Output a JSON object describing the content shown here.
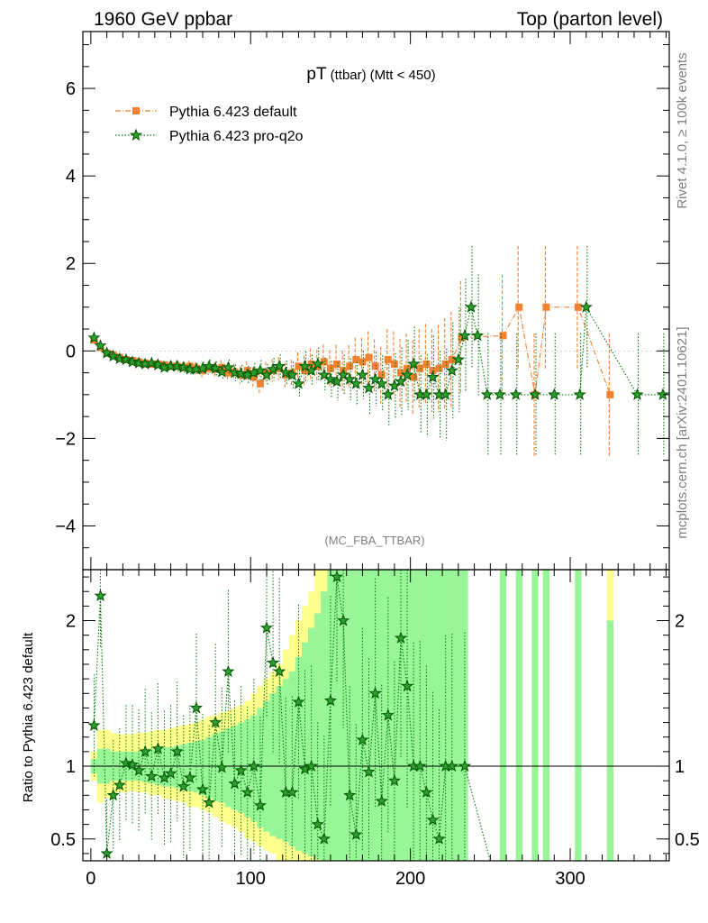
{
  "header": {
    "left": "1960 GeV ppbar",
    "right": "Top (parton level)"
  },
  "side": {
    "rivet": "Rivet 4.1.0, ≥ 100k events",
    "mcplots": "mcplots.cern.ch [arXiv:2401.10621]"
  },
  "chart_data": [
    {
      "type": "scatter",
      "title_main": "pT",
      "title_sub": "(ttbar)",
      "title_cut": "(Mtt < 450)",
      "analysis": "(MC_FBA_TTBAR)",
      "xlim": [
        -5,
        362
      ],
      "ylim": [
        -5,
        7.3
      ],
      "yticks": [
        -4,
        -2,
        0,
        2,
        4,
        6
      ],
      "ytick_labels": [
        "−4",
        "−2",
        "0",
        "2",
        "4",
        "6"
      ],
      "legend": [
        "Pythia 6.423 default",
        "Pythia 6.423 pro-q2o"
      ],
      "series": [
        {
          "name": "Pythia 6.423 default",
          "color": "#f4812f",
          "marker": "square",
          "x": [
            2,
            6,
            10,
            14,
            18,
            22,
            26,
            30,
            34,
            38,
            42,
            46,
            50,
            54,
            58,
            62,
            66,
            70,
            74,
            78,
            82,
            86,
            90,
            94,
            98,
            102,
            106,
            110,
            114,
            118,
            122,
            126,
            130,
            134,
            138,
            142,
            146,
            150,
            154,
            158,
            162,
            166,
            170,
            174,
            178,
            182,
            186,
            190,
            194,
            198,
            202,
            206,
            210,
            214,
            218,
            222,
            226,
            232,
            258,
            268,
            278,
            285,
            305,
            325
          ],
          "y": [
            0.25,
            0.08,
            -0.05,
            -0.1,
            -0.15,
            -0.2,
            -0.22,
            -0.25,
            -0.28,
            -0.3,
            -0.3,
            -0.32,
            -0.35,
            -0.35,
            -0.38,
            -0.35,
            -0.4,
            -0.45,
            -0.4,
            -0.42,
            -0.38,
            -0.5,
            -0.48,
            -0.55,
            -0.45,
            -0.6,
            -0.75,
            -0.5,
            -0.45,
            -0.4,
            -0.55,
            -0.5,
            -0.35,
            -0.45,
            -0.3,
            -0.35,
            -0.25,
            -0.4,
            -0.3,
            -0.45,
            -0.35,
            -0.2,
            -0.25,
            -0.15,
            -0.35,
            -0.55,
            -0.2,
            -0.3,
            -0.5,
            -0.4,
            -0.6,
            -0.4,
            -0.3,
            -0.45,
            -0.4,
            -0.3,
            -0.2,
            0.3,
            0.35,
            1.0,
            -1.0,
            1.0,
            1.0,
            -1.0
          ],
          "yerr": [
            0.05,
            0.05,
            0.05,
            0.06,
            0.06,
            0.07,
            0.07,
            0.08,
            0.08,
            0.09,
            0.1,
            0.1,
            0.11,
            0.12,
            0.12,
            0.13,
            0.14,
            0.15,
            0.15,
            0.16,
            0.17,
            0.18,
            0.19,
            0.2,
            0.21,
            0.22,
            0.24,
            0.25,
            0.26,
            0.27,
            0.28,
            0.3,
            0.32,
            0.34,
            0.36,
            0.38,
            0.4,
            0.42,
            0.44,
            0.46,
            0.48,
            0.5,
            0.55,
            0.6,
            0.62,
            0.65,
            0.7,
            0.75,
            0.78,
            0.8,
            0.85,
            0.9,
            0.92,
            0.95,
            1.0,
            1.05,
            1.1,
            1.3,
            1.4,
            1.4,
            1.4,
            1.4,
            1.4,
            1.4
          ]
        },
        {
          "name": "Pythia 6.423 pro-q2o",
          "color": "#007a00",
          "marker": "star",
          "x": [
            2,
            6,
            10,
            14,
            18,
            22,
            26,
            30,
            34,
            38,
            42,
            46,
            50,
            54,
            58,
            62,
            66,
            70,
            74,
            78,
            82,
            86,
            90,
            94,
            98,
            102,
            106,
            110,
            114,
            118,
            122,
            126,
            130,
            134,
            138,
            142,
            146,
            150,
            154,
            158,
            162,
            166,
            170,
            174,
            178,
            182,
            186,
            190,
            194,
            198,
            202,
            206,
            210,
            214,
            218,
            222,
            226,
            230,
            234,
            238,
            242,
            248,
            256,
            266,
            278,
            290,
            306,
            310,
            342,
            358
          ],
          "y": [
            0.3,
            0.12,
            -0.05,
            -0.12,
            -0.18,
            -0.2,
            -0.25,
            -0.28,
            -0.3,
            -0.28,
            -0.32,
            -0.38,
            -0.35,
            -0.35,
            -0.38,
            -0.42,
            -0.42,
            -0.4,
            -0.35,
            -0.4,
            -0.48,
            -0.38,
            -0.5,
            -0.52,
            -0.55,
            -0.5,
            -0.45,
            -0.55,
            -0.42,
            -0.35,
            -0.5,
            -0.55,
            -0.75,
            -0.35,
            -0.45,
            -0.3,
            -0.55,
            -0.65,
            -0.7,
            -0.55,
            -0.65,
            -0.75,
            -0.55,
            -0.85,
            -0.65,
            -0.75,
            -1.0,
            -0.8,
            -0.7,
            -0.55,
            -0.3,
            -1.0,
            -1.0,
            -0.6,
            -1.0,
            -1.0,
            -0.45,
            -0.2,
            0.35,
            1.0,
            0.35,
            -1.0,
            -1.0,
            -1.0,
            -1.0,
            -1.0,
            -1.0,
            1.0,
            -1.0,
            -1.0
          ],
          "yerr": [
            0.05,
            0.05,
            0.05,
            0.06,
            0.06,
            0.07,
            0.07,
            0.08,
            0.08,
            0.09,
            0.1,
            0.1,
            0.11,
            0.12,
            0.12,
            0.13,
            0.14,
            0.15,
            0.15,
            0.16,
            0.17,
            0.18,
            0.19,
            0.2,
            0.21,
            0.22,
            0.24,
            0.25,
            0.26,
            0.27,
            0.28,
            0.3,
            0.32,
            0.34,
            0.36,
            0.38,
            0.4,
            0.42,
            0.44,
            0.46,
            0.48,
            0.5,
            0.55,
            0.6,
            0.62,
            0.65,
            0.7,
            0.75,
            0.78,
            0.8,
            0.85,
            0.9,
            0.92,
            0.95,
            1.0,
            1.05,
            1.1,
            1.2,
            1.3,
            1.4,
            1.4,
            1.4,
            1.4,
            1.4,
            1.4,
            1.4,
            1.4,
            1.4,
            1.4,
            1.4
          ]
        }
      ]
    },
    {
      "type": "scatter",
      "ylabel": "Ratio to Pythia 6.423 default",
      "xlim": [
        -5,
        362
      ],
      "ylim": [
        0.35,
        2.35
      ],
      "reference": 1.0,
      "yticks": [
        0.5,
        1,
        2
      ],
      "ytick_labels": [
        "0.5",
        "1",
        "2"
      ],
      "xticks": [
        0,
        100,
        200,
        300
      ],
      "xtick_labels": [
        "0",
        "100",
        "200",
        "300"
      ],
      "band_yellow": {
        "x": [
          2,
          6,
          10,
          14,
          18,
          22,
          26,
          30,
          34,
          38,
          42,
          46,
          50,
          54,
          58,
          62,
          66,
          70,
          74,
          78,
          82,
          86,
          90,
          94,
          98,
          102,
          106,
          110,
          114,
          118,
          122,
          126,
          130,
          134,
          138,
          142,
          146,
          150,
          154,
          158,
          162,
          166,
          170,
          174,
          178,
          182,
          186,
          190,
          194,
          198,
          202,
          206,
          210,
          214,
          218,
          222,
          226,
          230,
          234,
          258,
          268,
          278,
          285,
          305,
          325
        ],
        "lo": [
          0.9,
          0.75,
          0.78,
          0.8,
          0.82,
          0.82,
          0.83,
          0.82,
          0.82,
          0.8,
          0.8,
          0.78,
          0.77,
          0.76,
          0.75,
          0.72,
          0.72,
          0.7,
          0.68,
          0.65,
          0.62,
          0.6,
          0.58,
          0.55,
          0.5,
          0.48,
          0.45,
          0.42,
          0.4,
          0.35,
          0.35,
          0.35,
          0.35,
          0.35,
          0.35,
          0.35,
          0.35,
          0.35,
          0.35,
          0.35,
          0.35,
          0.35,
          0.35,
          0.35,
          0.35,
          0.35,
          0.35,
          0.35,
          0.35,
          0.35,
          0.35,
          0.35,
          0.35,
          0.35,
          0.35,
          0.35,
          0.35,
          0.35,
          0.35,
          0.35,
          0.35,
          0.35,
          0.35,
          0.35,
          0.35
        ],
        "hi": [
          1.1,
          1.25,
          1.25,
          1.23,
          1.22,
          1.22,
          1.22,
          1.23,
          1.23,
          1.24,
          1.25,
          1.25,
          1.26,
          1.27,
          1.28,
          1.29,
          1.3,
          1.32,
          1.34,
          1.35,
          1.37,
          1.38,
          1.4,
          1.42,
          1.45,
          1.5,
          1.55,
          1.6,
          1.65,
          1.7,
          1.8,
          1.9,
          2.0,
          2.1,
          2.2,
          2.35,
          2.35,
          2.35,
          2.35,
          2.35,
          2.35,
          2.35,
          2.35,
          2.35,
          2.35,
          2.35,
          2.35,
          2.35,
          2.35,
          2.35,
          2.35,
          2.35,
          2.35,
          2.35,
          2.35,
          2.35,
          2.35,
          2.35,
          2.35,
          2.35,
          2.35,
          2.35,
          2.35,
          2.35,
          2.35
        ]
      },
      "band_green": {
        "x": [
          2,
          6,
          10,
          14,
          18,
          22,
          26,
          30,
          34,
          38,
          42,
          46,
          50,
          54,
          58,
          62,
          66,
          70,
          74,
          78,
          82,
          86,
          90,
          94,
          98,
          102,
          106,
          110,
          114,
          118,
          122,
          126,
          130,
          134,
          138,
          142,
          146,
          150,
          154,
          158,
          162,
          166,
          170,
          174,
          178,
          182,
          186,
          190,
          194,
          198,
          202,
          206,
          210,
          214,
          218,
          222,
          226,
          230,
          234,
          258,
          268,
          278,
          285,
          305,
          325
        ],
        "lo": [
          0.95,
          0.88,
          0.88,
          0.9,
          0.9,
          0.9,
          0.9,
          0.9,
          0.89,
          0.88,
          0.87,
          0.86,
          0.86,
          0.85,
          0.84,
          0.83,
          0.82,
          0.8,
          0.78,
          0.76,
          0.75,
          0.72,
          0.7,
          0.68,
          0.65,
          0.62,
          0.58,
          0.55,
          0.52,
          0.5,
          0.48,
          0.45,
          0.42,
          0.4,
          0.38,
          0.36,
          0.35,
          0.35,
          0.35,
          0.35,
          0.35,
          0.35,
          0.35,
          0.35,
          0.35,
          0.35,
          0.35,
          0.35,
          0.35,
          0.35,
          0.35,
          0.35,
          0.35,
          0.35,
          0.35,
          0.35,
          0.35,
          0.35,
          0.35,
          0.35,
          0.35,
          0.35,
          0.35,
          0.35,
          0.35
        ],
        "hi": [
          1.05,
          1.12,
          1.12,
          1.1,
          1.1,
          1.1,
          1.1,
          1.1,
          1.11,
          1.12,
          1.12,
          1.13,
          1.13,
          1.14,
          1.15,
          1.16,
          1.17,
          1.18,
          1.2,
          1.22,
          1.24,
          1.26,
          1.28,
          1.3,
          1.32,
          1.35,
          1.4,
          1.45,
          1.5,
          1.55,
          1.6,
          1.65,
          1.75,
          1.85,
          1.95,
          2.05,
          2.2,
          2.35,
          2.35,
          2.35,
          2.35,
          2.35,
          2.35,
          2.35,
          2.35,
          2.35,
          2.35,
          2.35,
          2.35,
          2.35,
          2.35,
          2.35,
          2.35,
          2.35,
          2.35,
          2.35,
          2.35,
          2.35,
          2.35,
          2.35,
          2.35,
          2.35,
          2.35,
          2.35,
          2.0
        ]
      },
      "ratio": {
        "name": "Pythia 6.423 pro-q2o",
        "x": [
          2,
          6,
          10,
          14,
          18,
          22,
          26,
          30,
          34,
          38,
          42,
          46,
          50,
          54,
          58,
          62,
          66,
          70,
          74,
          78,
          82,
          86,
          90,
          94,
          98,
          102,
          106,
          110,
          114,
          118,
          122,
          126,
          130,
          134,
          138,
          142,
          146,
          150,
          154,
          158,
          162,
          166,
          170,
          174,
          178,
          182,
          186,
          190,
          194,
          198,
          202,
          206,
          210,
          214,
          218,
          222,
          226,
          234
        ],
        "y": [
          1.28,
          2.17,
          0.4,
          0.8,
          0.87,
          1.02,
          1.01,
          0.97,
          1.1,
          0.93,
          1.12,
          0.92,
          0.95,
          1.1,
          0.86,
          0.92,
          1.4,
          0.84,
          0.75,
          1.3,
          0.99,
          1.65,
          0.88,
          0.97,
          0.82,
          1.0,
          0.73,
          1.95,
          1.71,
          1.65,
          0.82,
          0.82,
          1.44,
          0.98,
          1.0,
          0.6,
          0.5,
          1.45,
          2.3,
          2.0,
          0.8,
          0.53,
          1.18,
          0.96,
          1.5,
          0.76,
          1.35,
          0.9,
          1.88,
          1.55,
          1.0,
          1.0,
          0.82,
          0.63,
          0.5,
          1.0,
          1.0,
          1.0
        ]
      }
    }
  ]
}
